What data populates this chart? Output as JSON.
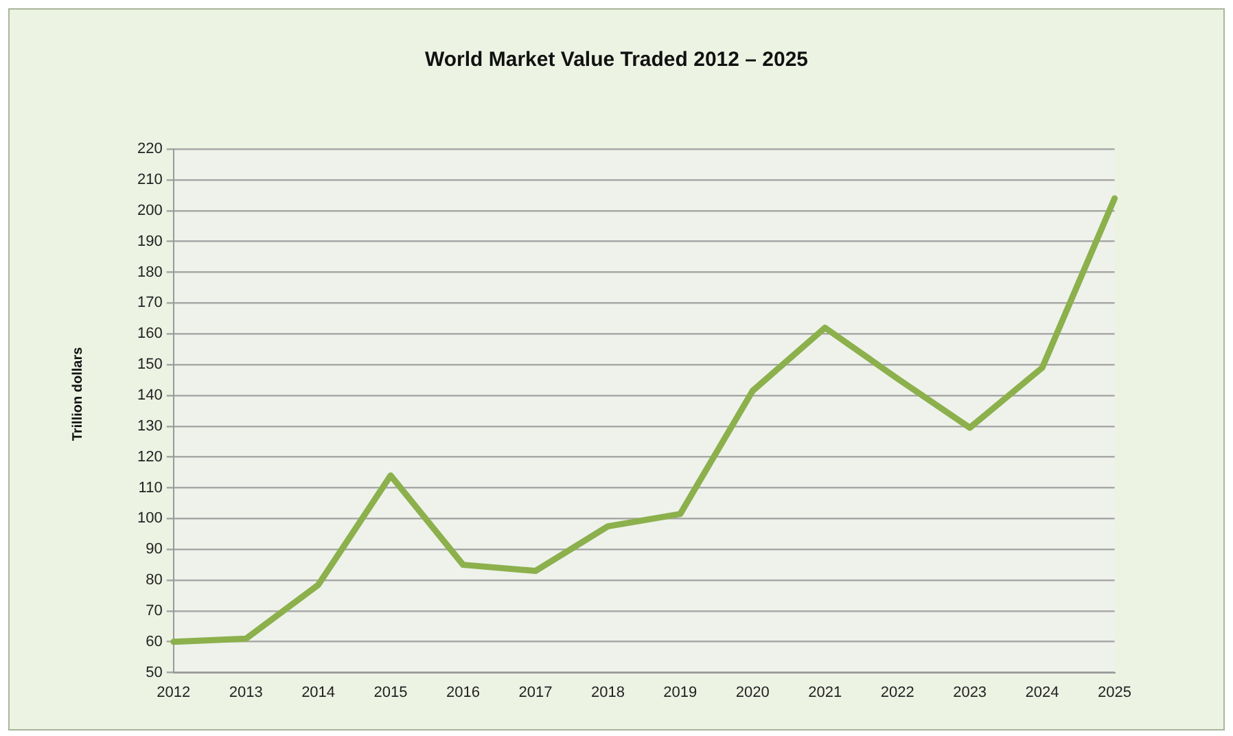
{
  "chart_data": {
    "type": "line",
    "title": "World Market Value Traded 2012 – 2025",
    "ylabel": "Trillion dollars",
    "categories": [
      "2012",
      "2013",
      "2014",
      "2015",
      "2016",
      "2017",
      "2018",
      "2019",
      "2020",
      "2021",
      "2022",
      "2023",
      "2024",
      "2025"
    ],
    "series": [
      {
        "color": "#8cb04c",
        "values": [
          60,
          61,
          78.5,
          114,
          85,
          83,
          97.5,
          101.5,
          141.5,
          162,
          145.5,
          129.5,
          149,
          204
        ]
      }
    ],
    "ylim": [
      50,
      220
    ],
    "yticks": [
      50,
      60,
      70,
      80,
      90,
      100,
      110,
      120,
      130,
      140,
      150,
      160,
      170,
      180,
      190,
      200,
      210,
      220
    ],
    "grid": "y",
    "legend": false,
    "marker": "none",
    "line_style": "solid"
  }
}
